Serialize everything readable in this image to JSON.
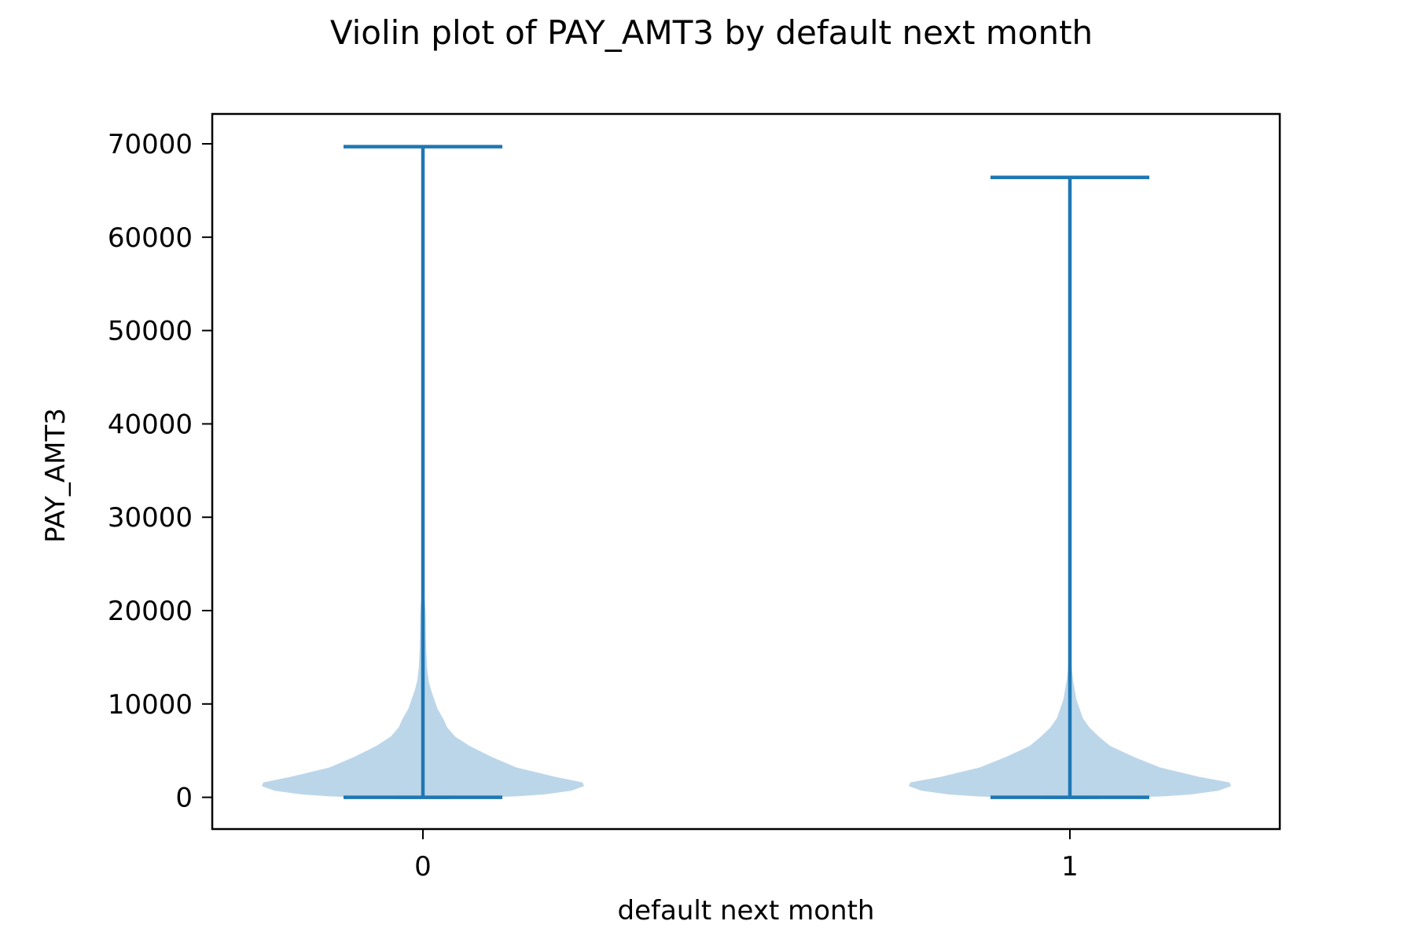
{
  "chart_data": {
    "type": "violin",
    "title": "Violin plot of PAY_AMT3 by default next month",
    "xlabel": "default next month",
    "ylabel": "PAY_AMT3",
    "categories": [
      "0",
      "1"
    ],
    "ylim": [
      -3400,
      73200
    ],
    "yticks": [
      0,
      10000,
      20000,
      30000,
      40000,
      50000,
      60000,
      70000
    ],
    "grid": false,
    "colors": {
      "body": "#a6c8e2",
      "lines": "#1f77b4",
      "text": "#000000"
    },
    "series": [
      {
        "category": "0",
        "min": 0,
        "max": 69700,
        "density": [
          [
            -200,
            0.13
          ],
          [
            0,
            0.4
          ],
          [
            100,
            0.58
          ],
          [
            300,
            0.75
          ],
          [
            700,
            0.92
          ],
          [
            1200,
            1.0
          ],
          [
            1600,
            0.99
          ],
          [
            2200,
            0.82
          ],
          [
            3200,
            0.58
          ],
          [
            4300,
            0.43
          ],
          [
            5500,
            0.29
          ],
          [
            6500,
            0.2
          ],
          [
            7500,
            0.15
          ],
          [
            8300,
            0.13
          ],
          [
            9500,
            0.09
          ],
          [
            10500,
            0.07
          ],
          [
            11500,
            0.05
          ],
          [
            12500,
            0.035
          ],
          [
            14000,
            0.025
          ],
          [
            16000,
            0.02
          ],
          [
            18000,
            0.018
          ],
          [
            19500,
            0.017
          ],
          [
            21000,
            0.012
          ],
          [
            22300,
            0.0
          ]
        ]
      },
      {
        "category": "1",
        "min": 0,
        "max": 66400,
        "density": [
          [
            -200,
            0.13
          ],
          [
            0,
            0.4
          ],
          [
            100,
            0.58
          ],
          [
            300,
            0.75
          ],
          [
            700,
            0.92
          ],
          [
            1200,
            1.0
          ],
          [
            1600,
            0.99
          ],
          [
            2200,
            0.8
          ],
          [
            3200,
            0.56
          ],
          [
            4300,
            0.4
          ],
          [
            5500,
            0.25
          ],
          [
            6500,
            0.18
          ],
          [
            7500,
            0.12
          ],
          [
            8500,
            0.08
          ],
          [
            9500,
            0.06
          ],
          [
            10500,
            0.04
          ],
          [
            11500,
            0.03
          ],
          [
            12500,
            0.02
          ],
          [
            13500,
            0.013
          ],
          [
            15000,
            0.008
          ],
          [
            16500,
            0.003
          ],
          [
            17500,
            0.0
          ]
        ]
      }
    ]
  }
}
